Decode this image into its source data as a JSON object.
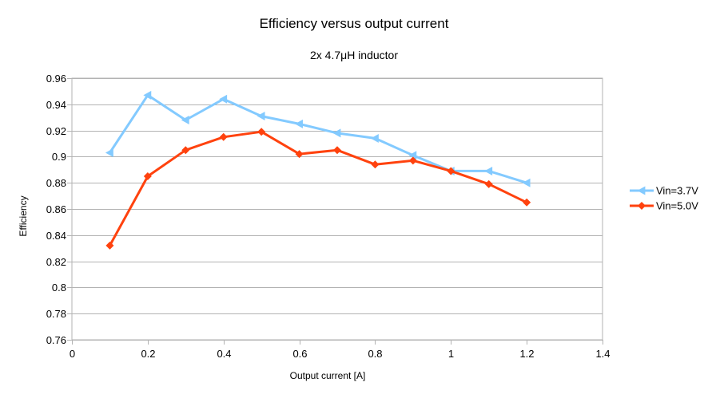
{
  "chart_data": {
    "type": "line",
    "title": "Efficiency versus output current",
    "subtitle": "2x 4.7μH inductor",
    "xlabel": "Output current [A]",
    "ylabel": "Efficiency",
    "xlim": [
      0,
      1.4
    ],
    "ylim": [
      0.76,
      0.96
    ],
    "x_ticks": [
      0,
      0.2,
      0.4,
      0.6,
      0.8,
      1,
      1.2,
      1.4
    ],
    "x_tick_labels": [
      "0",
      "0.2",
      "0.4",
      "0.6",
      "0.8",
      "1",
      "1.2",
      "1.4"
    ],
    "y_ticks": [
      0.76,
      0.78,
      0.8,
      0.82,
      0.84,
      0.86,
      0.88,
      0.9,
      0.92,
      0.94,
      0.96
    ],
    "y_tick_labels": [
      "0.76",
      "0.78",
      "0.8",
      "0.82",
      "0.84",
      "0.86",
      "0.88",
      "0.9",
      "0.92",
      "0.94",
      "0.96"
    ],
    "grid": true,
    "legend_position": "right",
    "x": [
      0.1,
      0.2,
      0.3,
      0.4,
      0.5,
      0.6,
      0.7,
      0.8,
      0.9,
      1.0,
      1.1,
      1.2
    ],
    "series": [
      {
        "name": "Vin=3.7V",
        "color": "#83caff",
        "marker": "triangle-left",
        "values": [
          0.903,
          0.947,
          0.928,
          0.944,
          0.931,
          0.925,
          0.918,
          0.914,
          0.901,
          0.889,
          0.889,
          0.88
        ]
      },
      {
        "name": "Vin=5.0V",
        "color": "#ff420e",
        "marker": "diamond",
        "values": [
          0.832,
          0.885,
          0.905,
          0.915,
          0.919,
          0.902,
          0.905,
          0.894,
          0.897,
          0.889,
          0.879,
          0.865
        ]
      }
    ]
  }
}
